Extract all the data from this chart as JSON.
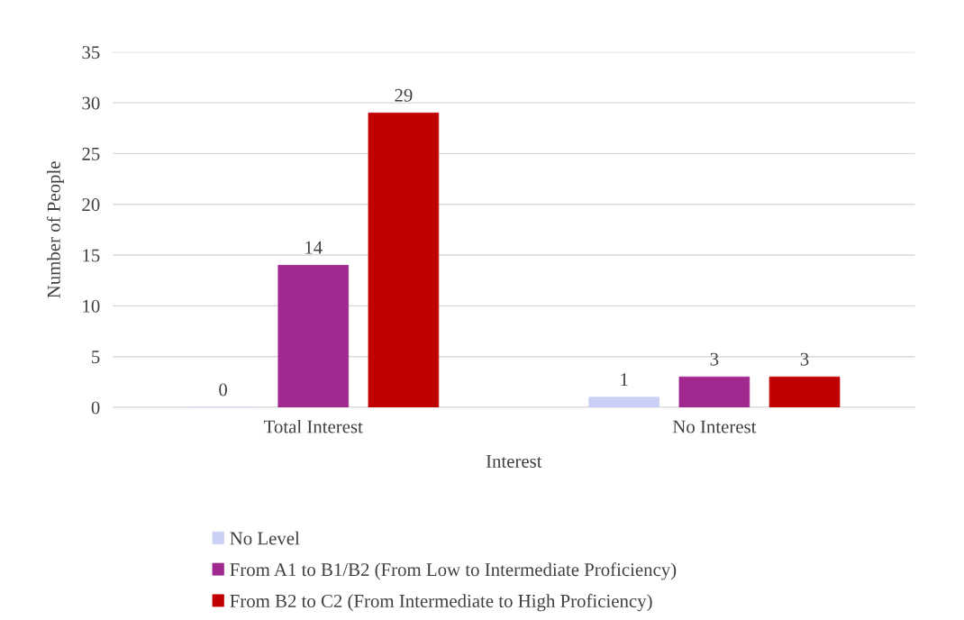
{
  "chart_data": {
    "type": "bar",
    "xlabel": "Interest",
    "ylabel": "Number of People",
    "categories": [
      "Total Interest",
      "No Interest"
    ],
    "series": [
      {
        "name": "No Level",
        "color": "#c9cff5",
        "values": [
          0,
          1
        ]
      },
      {
        "name": "From A1 to B1/B2 (From Low to Intermediate Proficiency)",
        "color": "#a0288f",
        "values": [
          14,
          3
        ]
      },
      {
        "name": "From B2 to C2 (From Intermediate to High Proficiency)",
        "color": "#c00000",
        "values": [
          29,
          3
        ]
      }
    ],
    "ylim": [
      0,
      35
    ],
    "yticks": [
      0,
      5,
      10,
      15,
      20,
      25,
      30,
      35
    ],
    "grid": "y",
    "legend": "bottom",
    "data_labels": true
  }
}
